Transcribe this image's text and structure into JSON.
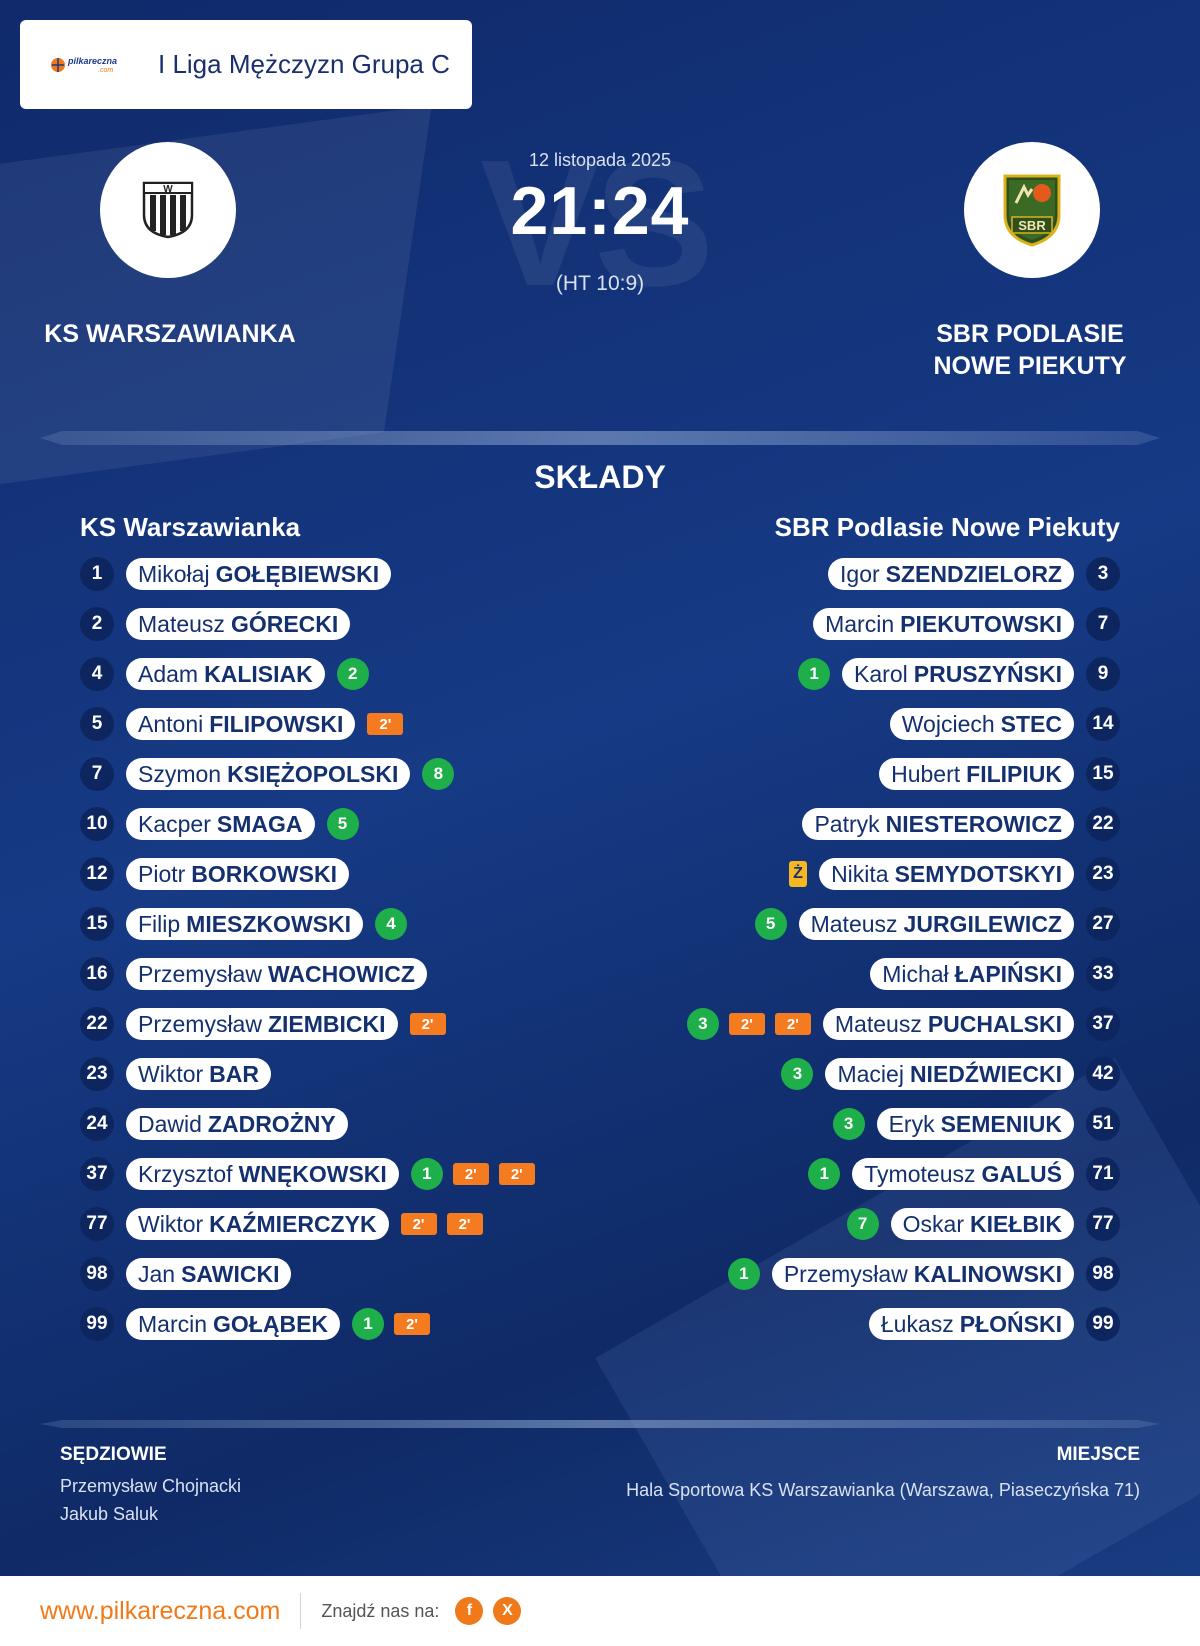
{
  "league": {
    "logo_text": "pilkareczna",
    "logo_domain": ".com",
    "name": "I Liga Mężczyzn Grupa C"
  },
  "match": {
    "date": "12 listopada 2025",
    "score": "21:24",
    "halftime": "(HT 10:9)",
    "vs_watermark": "VS"
  },
  "home_team": {
    "name": "KS WARSZAWIANKA",
    "crest_letter": "W"
  },
  "away_team": {
    "name_line1": "SBR PODLASIE",
    "name_line2": "NOWE PIEKUTY",
    "crest_text": "SBR"
  },
  "lineups": {
    "title": "SKŁADY",
    "home_title": "KS Warszawianka",
    "away_title": "SBR Podlasie Nowe Piekuty",
    "home": [
      {
        "number": "1",
        "first": "Mikołaj",
        "last": "GOŁĘBIEWSKI",
        "badges": []
      },
      {
        "number": "2",
        "first": "Mateusz",
        "last": "GÓRECKI",
        "badges": []
      },
      {
        "number": "4",
        "first": "Adam",
        "last": "KALISIAK",
        "badges": [
          {
            "type": "goal",
            "text": "2"
          }
        ]
      },
      {
        "number": "5",
        "first": "Antoni",
        "last": "FILIPOWSKI",
        "badges": [
          {
            "type": "pen",
            "text": "2'"
          }
        ]
      },
      {
        "number": "7",
        "first": "Szymon",
        "last": "KSIĘŻOPOLSKI",
        "badges": [
          {
            "type": "goal",
            "text": "8"
          }
        ]
      },
      {
        "number": "10",
        "first": "Kacper",
        "last": "SMAGA",
        "badges": [
          {
            "type": "goal",
            "text": "5"
          }
        ]
      },
      {
        "number": "12",
        "first": "Piotr",
        "last": "BORKOWSKI",
        "badges": []
      },
      {
        "number": "15",
        "first": "Filip",
        "last": "MIESZKOWSKI",
        "badges": [
          {
            "type": "goal",
            "text": "4"
          }
        ]
      },
      {
        "number": "16",
        "first": "Przemysław",
        "last": "WACHOWICZ",
        "badges": []
      },
      {
        "number": "22",
        "first": "Przemysław",
        "last": "ZIEMBICKI",
        "badges": [
          {
            "type": "pen",
            "text": "2'"
          }
        ]
      },
      {
        "number": "23",
        "first": "Wiktor",
        "last": "BAR",
        "badges": []
      },
      {
        "number": "24",
        "first": "Dawid",
        "last": "ZADROŻNY",
        "badges": []
      },
      {
        "number": "37",
        "first": "Krzysztof",
        "last": "WNĘKOWSKI",
        "badges": [
          {
            "type": "goal",
            "text": "1"
          },
          {
            "type": "pen",
            "text": "2'"
          },
          {
            "type": "pen",
            "text": "2'"
          }
        ]
      },
      {
        "number": "77",
        "first": "Wiktor",
        "last": "KAŹMIERCZYK",
        "badges": [
          {
            "type": "pen",
            "text": "2'"
          },
          {
            "type": "pen",
            "text": "2'"
          }
        ]
      },
      {
        "number": "98",
        "first": "Jan",
        "last": "SAWICKI",
        "badges": []
      },
      {
        "number": "99",
        "first": "Marcin",
        "last": "GOŁĄBEK",
        "badges": [
          {
            "type": "goal",
            "text": "1"
          },
          {
            "type": "pen",
            "text": "2'"
          }
        ]
      }
    ],
    "away": [
      {
        "number": "3",
        "first": "Igor",
        "last": "SZENDZIELORZ",
        "badges": []
      },
      {
        "number": "7",
        "first": "Marcin",
        "last": "PIEKUTOWSKI",
        "badges": []
      },
      {
        "number": "9",
        "first": "Karol",
        "last": "PRUSZYŃSKI",
        "badges": [
          {
            "type": "goal",
            "text": "1"
          }
        ]
      },
      {
        "number": "14",
        "first": "Wojciech",
        "last": "STEC",
        "badges": []
      },
      {
        "number": "15",
        "first": "Hubert",
        "last": "FILIPIUK",
        "badges": []
      },
      {
        "number": "22",
        "first": "Patryk",
        "last": "NIESTEROWICZ",
        "badges": []
      },
      {
        "number": "23",
        "first": "Nikita",
        "last": "SEMYDOTSKYI",
        "badges": [
          {
            "type": "yellow",
            "text": "Ż"
          }
        ]
      },
      {
        "number": "27",
        "first": "Mateusz",
        "last": "JURGILEWICZ",
        "badges": [
          {
            "type": "goal",
            "text": "5"
          }
        ]
      },
      {
        "number": "33",
        "first": "Michał",
        "last": "ŁAPIŃSKI",
        "badges": []
      },
      {
        "number": "37",
        "first": "Mateusz",
        "last": "PUCHALSKI",
        "badges": [
          {
            "type": "pen",
            "text": "2'"
          },
          {
            "type": "pen",
            "text": "2'"
          },
          {
            "type": "goal",
            "text": "3"
          }
        ]
      },
      {
        "number": "42",
        "first": "Maciej",
        "last": "NIEDŹWIECKI",
        "badges": [
          {
            "type": "goal",
            "text": "3"
          }
        ]
      },
      {
        "number": "51",
        "first": "Eryk",
        "last": "SEMENIUK",
        "badges": [
          {
            "type": "goal",
            "text": "3"
          }
        ]
      },
      {
        "number": "71",
        "first": "Tymoteusz",
        "last": "GALUŚ",
        "badges": [
          {
            "type": "goal",
            "text": "1"
          }
        ]
      },
      {
        "number": "77",
        "first": "Oskar",
        "last": "KIEŁBIK",
        "badges": [
          {
            "type": "goal",
            "text": "7"
          }
        ]
      },
      {
        "number": "98",
        "first": "Przemysław",
        "last": "KALINOWSKI",
        "badges": [
          {
            "type": "goal",
            "text": "1"
          }
        ]
      },
      {
        "number": "99",
        "first": "Łukasz",
        "last": "PŁOŃSKI",
        "badges": []
      }
    ]
  },
  "officials": {
    "title": "SĘDZIOWIE",
    "names": [
      "Przemysław Chojnacki",
      "Jakub Saluk"
    ]
  },
  "venue": {
    "title": "MIEJSCE",
    "text": "Hala Sportowa KS Warszawianka (Warszawa, Piaseczyńska 71)"
  },
  "footer": {
    "site": "www.pilkareczna.com",
    "find_us": "Znajdź nas na:",
    "social": [
      "f",
      "X"
    ]
  },
  "colors": {
    "background": "#163a85",
    "goal": "#1faf4a",
    "penalty": "#f47b20",
    "yellow_card": "#f5b823",
    "accent": "#f07a1a"
  }
}
